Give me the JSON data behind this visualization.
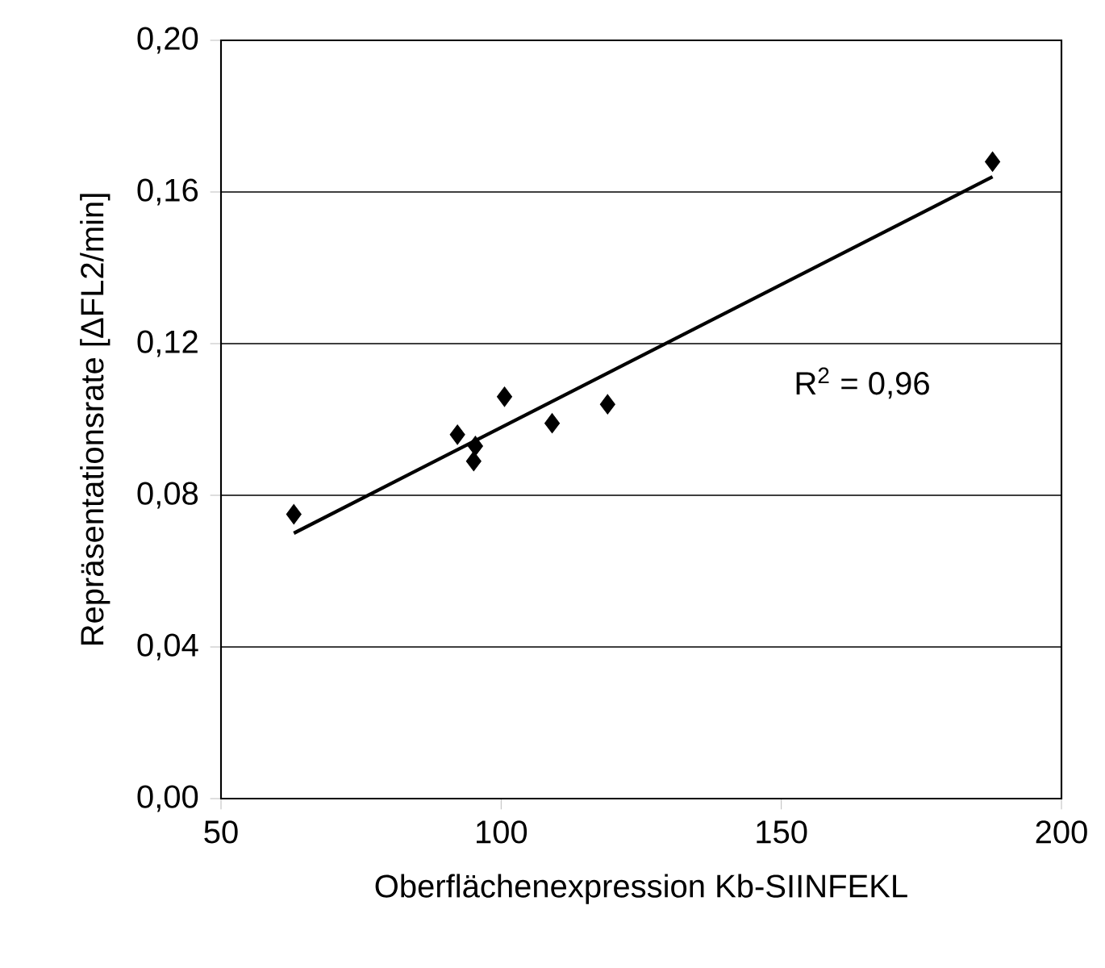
{
  "chart_data": {
    "type": "scatter",
    "xlabel": "Oberflächenexpression Kb-SIINFEKL",
    "ylabel": "Repräsentationsrate [ΔFL2/min]",
    "xlim": [
      50,
      200
    ],
    "xticks": [
      50,
      100,
      150,
      200
    ],
    "ylim": [
      0,
      0.2
    ],
    "yticks": [
      {
        "value": 0,
        "label": "0,00"
      },
      {
        "value": 0.04,
        "label": "0,04"
      },
      {
        "value": 0.08,
        "label": "0,08"
      },
      {
        "value": 0.12,
        "label": "0,12"
      },
      {
        "value": 0.16,
        "label": "0,16"
      },
      {
        "value": 0.2,
        "label": "0,20"
      }
    ],
    "grid": "y",
    "series": [
      {
        "color": "#000000",
        "marker": "diamond",
        "x": [
          63.0,
          92.2,
          95.4,
          95.1,
          100.6,
          109.1,
          119.0,
          187.7
        ],
        "values": [
          0.075,
          0.096,
          0.093,
          0.089,
          0.106,
          0.099,
          0.104,
          0.168
        ]
      },
      {
        "type": "line",
        "color": "#000000",
        "marker": "none",
        "x": [
          63.0,
          187.7
        ],
        "values": [
          0.07,
          0.164
        ]
      }
    ],
    "annotations": [
      "R$^{2}$ = 0,96"
    ]
  }
}
